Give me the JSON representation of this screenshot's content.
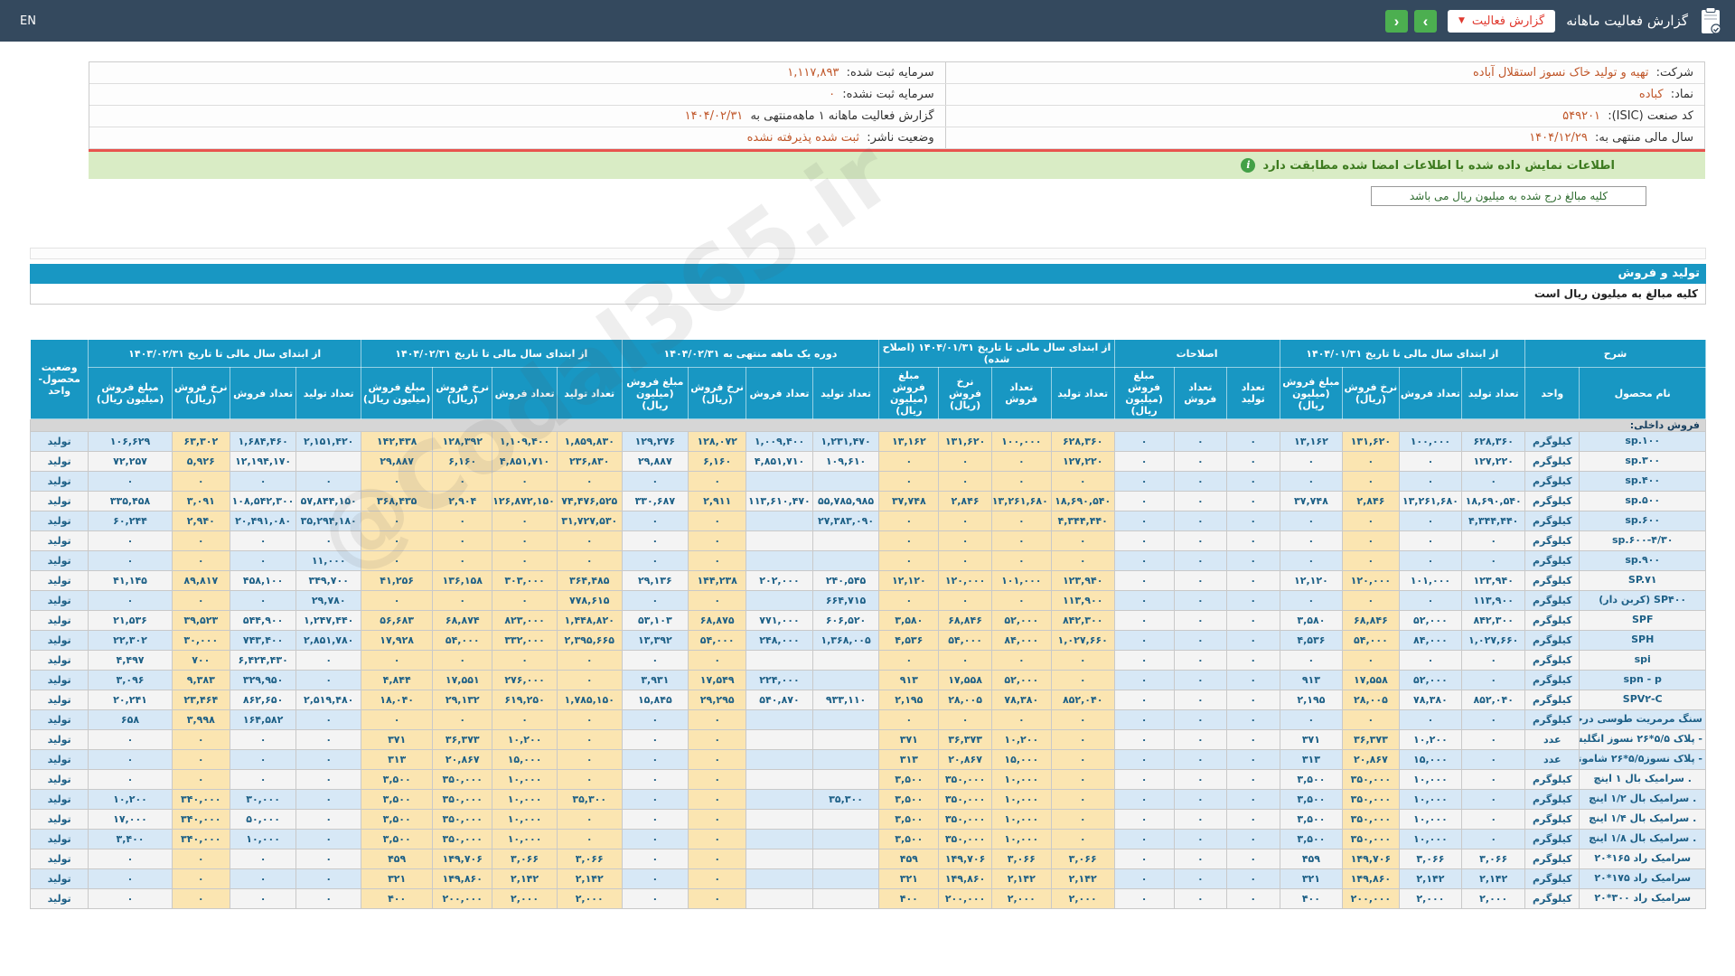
{
  "header": {
    "en_label": "EN",
    "title": "گزارش فعالیت ماهانه",
    "report_button_label": "گزارش فعالیت",
    "caret": "▼",
    "nav_right_label": "›",
    "nav_left_label": "‹"
  },
  "company_info": {
    "rows": [
      {
        "right": {
          "label": "شرکت:",
          "value": "تهیه و تولید خاک نسوز استقلال آباده"
        },
        "left": {
          "label": "سرمایه ثبت شده:",
          "value": "۱,۱۱۷,۸۹۳"
        }
      },
      {
        "right": {
          "label": "نماد:",
          "value": "کباده"
        },
        "left": {
          "label": "سرمایه ثبت نشده:",
          "value": "۰"
        }
      },
      {
        "right": {
          "label": "کد صنعت (ISIC):",
          "value": "۵۴۹۲۰۱"
        },
        "left": {
          "label": "گزارش فعالیت ماهانه ۱ ماهه‌منتهی به",
          "value": "۱۴۰۴/۰۲/۳۱"
        }
      },
      {
        "right": {
          "label": "سال مالی منتهی به:",
          "value": "۱۴۰۴/۱۲/۲۹"
        },
        "left": {
          "label": "وضعیت ناشر:",
          "value": "ثبت شده پذیرفته نشده"
        }
      }
    ]
  },
  "notice": {
    "text": "اطلاعات نمایش داده شده با اطلاعات امضا شده مطابقت دارد",
    "icon": "i"
  },
  "amounts_note": "کلیه مبالغ درج شده به میلیون ریال می باشد",
  "section": {
    "title": "تولید و فروش",
    "note": "کلیه مبالغ به میلیون ریال است"
  },
  "watermark": "@Codal365.ir",
  "table": {
    "desc_group": "شرح",
    "status_header": "وضعیت محصول-واحد",
    "col_headers": {
      "name": "نام محصول",
      "unit": "واحد",
      "tt": "تعداد تولید",
      "tf": "تعداد فروش",
      "nr": "نرخ فروش (ریال)",
      "mb": "مبلغ فروش (میلیون ریال)"
    },
    "groups": [
      {
        "key": "g1",
        "label": "از ابتدای سال مالی تا تاریخ ۱۴۰۴/۰۱/۳۱",
        "cols": [
          "tt",
          "tf",
          "nr",
          "mb"
        ]
      },
      {
        "key": "g2",
        "label": "اصلاحات",
        "cols": [
          "tt",
          "tf",
          "mb"
        ]
      },
      {
        "key": "g3",
        "label": "از ابتدای سال مالی تا تاریخ ۱۴۰۴/۰۱/۳۱ (اصلاح شده)",
        "cols": [
          "tt",
          "tf",
          "nr",
          "mb"
        ]
      },
      {
        "key": "g4",
        "label": "دوره یک ماهه منتهی به ۱۴۰۴/۰۲/۳۱",
        "cols": [
          "tt",
          "tf",
          "nr",
          "mb"
        ]
      },
      {
        "key": "g5",
        "label": "از ابتدای سال مالی تا تاریخ ۱۴۰۴/۰۲/۳۱",
        "cols": [
          "tt",
          "tf",
          "nr",
          "mb"
        ]
      },
      {
        "key": "g6",
        "label": "از ابتدای سال مالی تا تاریخ ۱۴۰۳/۰۲/۳۱",
        "cols": [
          "tt",
          "tf",
          "nr",
          "mb"
        ]
      }
    ],
    "section_row": "فروش داخلی:",
    "rows": [
      {
        "name": "sp.۱۰۰",
        "dir": "ltr",
        "unit": "کیلوگرم",
        "g1": [
          "۶۲۸,۳۶۰",
          "۱۰۰,۰۰۰",
          "۱۳۱,۶۲۰",
          "۱۳,۱۶۲"
        ],
        "g2": [
          "۰",
          "۰",
          "۰"
        ],
        "g3": [
          "۶۲۸,۳۶۰",
          "۱۰۰,۰۰۰",
          "۱۳۱,۶۲۰",
          "۱۳,۱۶۲"
        ],
        "g4": [
          "۱,۲۳۱,۴۷۰",
          "۱,۰۰۹,۴۰۰",
          "۱۲۸,۰۷۲",
          "۱۲۹,۲۷۶"
        ],
        "g5": [
          "۱,۸۵۹,۸۳۰",
          "۱,۱۰۹,۴۰۰",
          "۱۲۸,۳۹۲",
          "۱۴۲,۴۳۸"
        ],
        "g6": [
          "۲,۱۵۱,۴۲۰",
          "۱,۶۸۴,۴۶۰",
          "۶۳,۳۰۲",
          "۱۰۶,۶۲۹"
        ],
        "status": "تولید"
      },
      {
        "name": "sp.۳۰۰",
        "dir": "ltr",
        "unit": "کیلوگرم",
        "g1": [
          "۱۲۷,۲۲۰",
          "۰",
          "۰",
          "۰"
        ],
        "g2": [
          "۰",
          "۰",
          "۰"
        ],
        "g3": [
          "۱۲۷,۲۲۰",
          "۰",
          "۰",
          "۰"
        ],
        "g4": [
          "۱۰۹,۶۱۰",
          "۴,۸۵۱,۷۱۰",
          "۶,۱۶۰",
          "۲۹,۸۸۷"
        ],
        "g5": [
          "۲۳۶,۸۳۰",
          "۴,۸۵۱,۷۱۰",
          "۶,۱۶۰",
          "۲۹,۸۸۷"
        ],
        "g6": [
          "",
          "۱۲,۱۹۴,۱۷۰",
          "۵,۹۲۶",
          "۷۲,۲۵۷"
        ],
        "status": "تولید"
      },
      {
        "name": "sp.۴۰۰",
        "dir": "ltr",
        "unit": "کیلوگرم",
        "g1": [
          "۰",
          "۰",
          "۰",
          "۰"
        ],
        "g2": [
          "۰",
          "۰",
          "۰"
        ],
        "g3": [
          "۰",
          "۰",
          "۰",
          "۰"
        ],
        "g4": [
          "",
          "",
          "۰",
          "۰"
        ],
        "g5": [
          "۰",
          "۰",
          "۰",
          "۰"
        ],
        "g6": [
          "۰",
          "۰",
          "۰",
          "۰"
        ],
        "status": "تولید"
      },
      {
        "name": "sp.۵۰۰",
        "dir": "ltr",
        "unit": "کیلوگرم",
        "g1": [
          "۱۸,۶۹۰,۵۴۰",
          "۱۳,۲۶۱,۶۸۰",
          "۲,۸۴۶",
          "۳۷,۷۴۸"
        ],
        "g2": [
          "۰",
          "۰",
          "۰"
        ],
        "g3": [
          "۱۸,۶۹۰,۵۴۰",
          "۱۳,۲۶۱,۶۸۰",
          "۲,۸۴۶",
          "۳۷,۷۴۸"
        ],
        "g4": [
          "۵۵,۷۸۵,۹۸۵",
          "۱۱۳,۶۱۰,۴۷۰",
          "۲,۹۱۱",
          "۳۳۰,۶۸۷"
        ],
        "g5": [
          "۷۴,۴۷۶,۵۲۵",
          "۱۲۶,۸۷۲,۱۵۰",
          "۲,۹۰۴",
          "۳۶۸,۴۳۵"
        ],
        "g6": [
          "۵۷,۸۴۴,۱۵۰",
          "۱۰۸,۵۴۲,۳۰۰",
          "۳,۰۹۱",
          "۳۳۵,۴۵۸"
        ],
        "status": "تولید"
      },
      {
        "name": "sp.۶۰۰",
        "dir": "ltr",
        "unit": "کیلوگرم",
        "g1": [
          "۴,۳۴۴,۴۴۰",
          "۰",
          "۰",
          "۰"
        ],
        "g2": [
          "۰",
          "۰",
          "۰"
        ],
        "g3": [
          "۴,۳۴۴,۴۴۰",
          "۰",
          "۰",
          "۰"
        ],
        "g4": [
          "۲۷,۳۸۳,۰۹۰",
          "",
          "۰",
          "۰"
        ],
        "g5": [
          "۳۱,۷۲۷,۵۳۰",
          "۰",
          "۰",
          "۰"
        ],
        "g6": [
          "۳۵,۲۹۴,۱۸۰",
          "۲۰,۴۹۱,۰۸۰",
          "۲,۹۴۰",
          "۶۰,۲۴۴"
        ],
        "status": "تولید"
      },
      {
        "name": "sp.۶۰۰-۴/۳۰",
        "dir": "ltr",
        "unit": "کیلوگرم",
        "g1": [
          "۰",
          "۰",
          "۰",
          "۰"
        ],
        "g2": [
          "۰",
          "۰",
          "۰"
        ],
        "g3": [
          "۰",
          "۰",
          "۰",
          "۰"
        ],
        "g4": [
          "",
          "",
          "۰",
          "۰"
        ],
        "g5": [
          "۰",
          "۰",
          "۰",
          "۰"
        ],
        "g6": [
          "۰",
          "۰",
          "۰",
          "۰"
        ],
        "status": "تولید"
      },
      {
        "name": "sp.۹۰۰",
        "dir": "ltr",
        "unit": "کیلوگرم",
        "g1": [
          "۰",
          "۰",
          "۰",
          "۰"
        ],
        "g2": [
          "۰",
          "۰",
          "۰"
        ],
        "g3": [
          "۰",
          "۰",
          "۰",
          "۰"
        ],
        "g4": [
          "",
          "",
          "۰",
          "۰"
        ],
        "g5": [
          "۰",
          "۰",
          "۰",
          "۰"
        ],
        "g6": [
          "۱۱,۰۰۰",
          "۰",
          "۰",
          "۰"
        ],
        "status": "تولید"
      },
      {
        "name": "SP.۷۱",
        "dir": "ltr",
        "unit": "کیلوگرم",
        "g1": [
          "۱۲۳,۹۴۰",
          "۱۰۱,۰۰۰",
          "۱۲۰,۰۰۰",
          "۱۲,۱۲۰"
        ],
        "g2": [
          "۰",
          "۰",
          "۰"
        ],
        "g3": [
          "۱۲۳,۹۴۰",
          "۱۰۱,۰۰۰",
          "۱۲۰,۰۰۰",
          "۱۲,۱۲۰"
        ],
        "g4": [
          "۲۴۰,۵۴۵",
          "۲۰۲,۰۰۰",
          "۱۴۴,۲۳۸",
          "۲۹,۱۳۶"
        ],
        "g5": [
          "۳۶۴,۴۸۵",
          "۳۰۳,۰۰۰",
          "۱۳۶,۱۵۸",
          "۴۱,۲۵۶"
        ],
        "g6": [
          "۳۴۹,۷۰۰",
          "۴۵۸,۱۰۰",
          "۸۹,۸۱۷",
          "۴۱,۱۴۵"
        ],
        "status": "تولید"
      },
      {
        "name": "SP۴۰۰ (کربن دار)",
        "dir": "rtl",
        "unit": "کیلوگرم",
        "g1": [
          "۱۱۳,۹۰۰",
          "۰",
          "۰",
          "۰"
        ],
        "g2": [
          "۰",
          "۰",
          "۰"
        ],
        "g3": [
          "۱۱۳,۹۰۰",
          "۰",
          "۰",
          "۰"
        ],
        "g4": [
          "۶۶۴,۷۱۵",
          "",
          "۰",
          "۰"
        ],
        "g5": [
          "۷۷۸,۶۱۵",
          "۰",
          "۰",
          "۰"
        ],
        "g6": [
          "۲۹,۷۸۰",
          "۰",
          "۰",
          "۰"
        ],
        "status": "تولید"
      },
      {
        "name": "SPF",
        "dir": "ltr",
        "unit": "کیلوگرم",
        "g1": [
          "۸۴۲,۳۰۰",
          "۵۲,۰۰۰",
          "۶۸,۸۴۶",
          "۳,۵۸۰"
        ],
        "g2": [
          "۰",
          "۰",
          "۰"
        ],
        "g3": [
          "۸۴۲,۳۰۰",
          "۵۲,۰۰۰",
          "۶۸,۸۴۶",
          "۳,۵۸۰"
        ],
        "g4": [
          "۶۰۶,۵۲۰",
          "۷۷۱,۰۰۰",
          "۶۸,۸۷۵",
          "۵۳,۱۰۳"
        ],
        "g5": [
          "۱,۴۴۸,۸۲۰",
          "۸۲۳,۰۰۰",
          "۶۸,۸۷۴",
          "۵۶,۶۸۳"
        ],
        "g6": [
          "۱,۲۴۷,۴۴۰",
          "۵۴۴,۹۰۰",
          "۳۹,۵۲۳",
          "۲۱,۵۳۶"
        ],
        "status": "تولید"
      },
      {
        "name": "SPH",
        "dir": "ltr",
        "unit": "کیلوگرم",
        "g1": [
          "۱,۰۲۷,۶۶۰",
          "۸۴,۰۰۰",
          "۵۴,۰۰۰",
          "۴,۵۳۶"
        ],
        "g2": [
          "۰",
          "۰",
          "۰"
        ],
        "g3": [
          "۱,۰۲۷,۶۶۰",
          "۸۴,۰۰۰",
          "۵۴,۰۰۰",
          "۴,۵۳۶"
        ],
        "g4": [
          "۱,۳۶۸,۰۰۵",
          "۲۴۸,۰۰۰",
          "۵۴,۰۰۰",
          "۱۳,۳۹۲"
        ],
        "g5": [
          "۲,۳۹۵,۶۶۵",
          "۳۳۲,۰۰۰",
          "۵۴,۰۰۰",
          "۱۷,۹۲۸"
        ],
        "g6": [
          "۲,۸۵۱,۷۸۰",
          "۷۴۳,۴۰۰",
          "۳۰,۰۰۰",
          "۲۲,۳۰۲"
        ],
        "status": "تولید"
      },
      {
        "name": "spi",
        "dir": "ltr",
        "unit": "کیلوگرم",
        "g1": [
          "۰",
          "۰",
          "۰",
          "۰"
        ],
        "g2": [
          "۰",
          "۰",
          "۰"
        ],
        "g3": [
          "۰",
          "۰",
          "۰",
          "۰"
        ],
        "g4": [
          "",
          "",
          "۰",
          "۰"
        ],
        "g5": [
          "۰",
          "۰",
          "۰",
          "۰"
        ],
        "g6": [
          "۰",
          "۶,۴۲۴,۴۳۰",
          "۷۰۰",
          "۴,۴۹۷"
        ],
        "status": "تولید"
      },
      {
        "name": "spn - p",
        "dir": "ltr",
        "unit": "کیلوگرم",
        "g1": [
          "۰",
          "۵۲,۰۰۰",
          "۱۷,۵۵۸",
          "۹۱۳"
        ],
        "g2": [
          "۰",
          "۰",
          "۰"
        ],
        "g3": [
          "۰",
          "۵۲,۰۰۰",
          "۱۷,۵۵۸",
          "۹۱۳"
        ],
        "g4": [
          "",
          "۲۲۴,۰۰۰",
          "۱۷,۵۴۹",
          "۳,۹۳۱"
        ],
        "g5": [
          "۰",
          "۲۷۶,۰۰۰",
          "۱۷,۵۵۱",
          "۴,۸۴۴"
        ],
        "g6": [
          "۰",
          "۳۲۹,۹۵۰",
          "۹,۳۸۳",
          "۳,۰۹۶"
        ],
        "status": "تولید"
      },
      {
        "name": "SPV۲-C",
        "dir": "ltr",
        "unit": "کیلوگرم",
        "g1": [
          "۸۵۲,۰۴۰",
          "۷۸,۳۸۰",
          "۲۸,۰۰۵",
          "۲,۱۹۵"
        ],
        "g2": [
          "۰",
          "۰",
          "۰"
        ],
        "g3": [
          "۸۵۲,۰۴۰",
          "۷۸,۳۸۰",
          "۲۸,۰۰۵",
          "۲,۱۹۵"
        ],
        "g4": [
          "۹۳۳,۱۱۰",
          "۵۴۰,۸۷۰",
          "۲۹,۲۹۵",
          "۱۵,۸۴۵"
        ],
        "g5": [
          "۱,۷۸۵,۱۵۰",
          "۶۱۹,۲۵۰",
          "۲۹,۱۳۲",
          "۱۸,۰۴۰"
        ],
        "g6": [
          "۲,۵۱۹,۴۸۰",
          "۸۶۲,۶۵۰",
          "۲۳,۴۶۴",
          "۲۰,۲۴۱"
        ],
        "status": "تولید"
      },
      {
        "name": "سنگ مرمریت طوسی درجه ۳",
        "dir": "rtl",
        "unit": "کیلوگرم",
        "g1": [
          "۰",
          "۰",
          "۰",
          "۰"
        ],
        "g2": [
          "۰",
          "۰",
          "۰"
        ],
        "g3": [
          "۰",
          "۰",
          "۰",
          "۰"
        ],
        "g4": [
          "",
          "",
          "۰",
          "۰"
        ],
        "g5": [
          "۰",
          "۰",
          "۰",
          "۰"
        ],
        "g6": [
          "۰",
          "۱۶۴,۵۸۲",
          "۳,۹۹۸",
          "۶۵۸"
        ],
        "status": "تولید"
      },
      {
        "name": "- پلاک ۵/۵*۲۶ نسوز انگلیسی روشن",
        "dir": "rtl",
        "unit": "عدد",
        "g1": [
          "۰",
          "۱۰,۲۰۰",
          "۳۶,۳۷۳",
          "۳۷۱"
        ],
        "g2": [
          "۰",
          "۰",
          "۰"
        ],
        "g3": [
          "۰",
          "۱۰,۲۰۰",
          "۳۶,۳۷۳",
          "۳۷۱"
        ],
        "g4": [
          "",
          "",
          "۰",
          "۰"
        ],
        "g5": [
          "۰",
          "۱۰,۲۰۰",
          "۳۶,۳۷۳",
          "۳۷۱"
        ],
        "g6": [
          "۰",
          "۰",
          "۰",
          "۰"
        ],
        "status": "تولید"
      },
      {
        "name": "- پلاک نسوز۵/۵*۲۶ شاموتی رندوم درجه ۲",
        "dir": "rtl",
        "unit": "عدد",
        "g1": [
          "۰",
          "۱۵,۰۰۰",
          "۲۰,۸۶۷",
          "۳۱۳"
        ],
        "g2": [
          "۰",
          "۰",
          "۰"
        ],
        "g3": [
          "۰",
          "۱۵,۰۰۰",
          "۲۰,۸۶۷",
          "۳۱۳"
        ],
        "g4": [
          "",
          "",
          "۰",
          "۰"
        ],
        "g5": [
          "۰",
          "۱۵,۰۰۰",
          "۲۰,۸۶۷",
          "۳۱۳"
        ],
        "g6": [
          "۰",
          "۰",
          "۰",
          "۰"
        ],
        "status": "تولید"
      },
      {
        "name": ". سرامیک بال ۱ اینچ",
        "dir": "rtl",
        "unit": "کیلوگرم",
        "g1": [
          "۰",
          "۱۰,۰۰۰",
          "۳۵۰,۰۰۰",
          "۳,۵۰۰"
        ],
        "g2": [
          "۰",
          "۰",
          "۰"
        ],
        "g3": [
          "۰",
          "۱۰,۰۰۰",
          "۳۵۰,۰۰۰",
          "۳,۵۰۰"
        ],
        "g4": [
          "",
          "",
          "۰",
          "۰"
        ],
        "g5": [
          "۰",
          "۱۰,۰۰۰",
          "۳۵۰,۰۰۰",
          "۳,۵۰۰"
        ],
        "g6": [
          "۰",
          "۰",
          "۰",
          "۰"
        ],
        "status": "تولید"
      },
      {
        "name": ". سرامیک بال ۱/۲ اینچ",
        "dir": "rtl",
        "unit": "کیلوگرم",
        "g1": [
          "۰",
          "۱۰,۰۰۰",
          "۳۵۰,۰۰۰",
          "۳,۵۰۰"
        ],
        "g2": [
          "۰",
          "۰",
          "۰"
        ],
        "g3": [
          "۰",
          "۱۰,۰۰۰",
          "۳۵۰,۰۰۰",
          "۳,۵۰۰"
        ],
        "g4": [
          "۳۵,۳۰۰",
          "",
          "۰",
          "۰"
        ],
        "g5": [
          "۳۵,۳۰۰",
          "۱۰,۰۰۰",
          "۳۵۰,۰۰۰",
          "۳,۵۰۰"
        ],
        "g6": [
          "۰",
          "۳۰,۰۰۰",
          "۳۴۰,۰۰۰",
          "۱۰,۲۰۰"
        ],
        "status": "تولید"
      },
      {
        "name": ". سرامیک بال ۱/۴ اینچ",
        "dir": "rtl",
        "unit": "کیلوگرم",
        "g1": [
          "۰",
          "۱۰,۰۰۰",
          "۳۵۰,۰۰۰",
          "۳,۵۰۰"
        ],
        "g2": [
          "۰",
          "۰",
          "۰"
        ],
        "g3": [
          "۰",
          "۱۰,۰۰۰",
          "۳۵۰,۰۰۰",
          "۳,۵۰۰"
        ],
        "g4": [
          "",
          "",
          "۰",
          "۰"
        ],
        "g5": [
          "۰",
          "۱۰,۰۰۰",
          "۳۵۰,۰۰۰",
          "۳,۵۰۰"
        ],
        "g6": [
          "۰",
          "۵۰,۰۰۰",
          "۳۴۰,۰۰۰",
          "۱۷,۰۰۰"
        ],
        "status": "تولید"
      },
      {
        "name": ". سرامیک بال ۱/۸ اینچ",
        "dir": "rtl",
        "unit": "کیلوگرم",
        "g1": [
          "۰",
          "۱۰,۰۰۰",
          "۳۵۰,۰۰۰",
          "۳,۵۰۰"
        ],
        "g2": [
          "۰",
          "۰",
          "۰"
        ],
        "g3": [
          "۰",
          "۱۰,۰۰۰",
          "۳۵۰,۰۰۰",
          "۳,۵۰۰"
        ],
        "g4": [
          "",
          "",
          "۰",
          "۰"
        ],
        "g5": [
          "۰",
          "۱۰,۰۰۰",
          "۳۵۰,۰۰۰",
          "۳,۵۰۰"
        ],
        "g6": [
          "۰",
          "۱۰,۰۰۰",
          "۳۴۰,۰۰۰",
          "۳,۴۰۰"
        ],
        "status": "تولید"
      },
      {
        "name": "سرامیک راد ۱۶۵*۲۰",
        "dir": "rtl",
        "unit": "کیلوگرم",
        "g1": [
          "۳,۰۶۶",
          "۳,۰۶۶",
          "۱۴۹,۷۰۶",
          "۴۵۹"
        ],
        "g2": [
          "۰",
          "۰",
          "۰"
        ],
        "g3": [
          "۳,۰۶۶",
          "۳,۰۶۶",
          "۱۴۹,۷۰۶",
          "۴۵۹"
        ],
        "g4": [
          "",
          "",
          "۰",
          "۰"
        ],
        "g5": [
          "۳,۰۶۶",
          "۳,۰۶۶",
          "۱۴۹,۷۰۶",
          "۴۵۹"
        ],
        "g6": [
          "۰",
          "۰",
          "۰",
          "۰"
        ],
        "status": "تولید"
      },
      {
        "name": "سرامیک راد ۱۷۵*۲۰",
        "dir": "rtl",
        "unit": "کیلوگرم",
        "g1": [
          "۲,۱۴۲",
          "۲,۱۴۲",
          "۱۴۹,۸۶۰",
          "۳۲۱"
        ],
        "g2": [
          "۰",
          "۰",
          "۰"
        ],
        "g3": [
          "۲,۱۴۲",
          "۲,۱۴۲",
          "۱۴۹,۸۶۰",
          "۳۲۱"
        ],
        "g4": [
          "",
          "",
          "۰",
          "۰"
        ],
        "g5": [
          "۲,۱۴۲",
          "۲,۱۴۲",
          "۱۴۹,۸۶۰",
          "۳۲۱"
        ],
        "g6": [
          "۰",
          "۰",
          "۰",
          "۰"
        ],
        "status": "تولید"
      },
      {
        "name": "سرامیک راد ۳۰۰*۲۰",
        "dir": "rtl",
        "unit": "کیلوگرم",
        "g1": [
          "۲,۰۰۰",
          "۲,۰۰۰",
          "۲۰۰,۰۰۰",
          "۴۰۰"
        ],
        "g2": [
          "۰",
          "۰",
          "۰"
        ],
        "g3": [
          "۲,۰۰۰",
          "۲,۰۰۰",
          "۲۰۰,۰۰۰",
          "۴۰۰"
        ],
        "g4": [
          "",
          "",
          "۰",
          "۰"
        ],
        "g5": [
          "۲,۰۰۰",
          "۲,۰۰۰",
          "۲۰۰,۰۰۰",
          "۴۰۰"
        ],
        "g6": [
          "۰",
          "۰",
          "۰",
          "۰"
        ],
        "status": "تولید"
      }
    ]
  }
}
